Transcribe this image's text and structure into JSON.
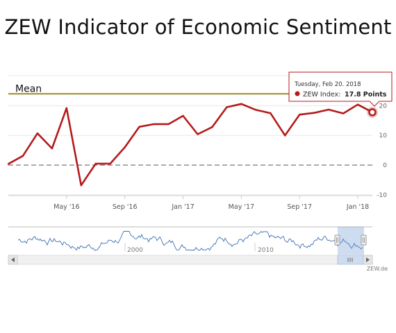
{
  "title": "ZEW Indicator of Economic Sentiment",
  "credits": "ZEW.de",
  "colors": {
    "series": "#b51a1a",
    "mean": "#9a8a2a",
    "zero": "#777777",
    "navigator": "#3a6fb5"
  },
  "chart_data": {
    "type": "line",
    "title": "ZEW Indicator of Economic Sentiment",
    "x": [
      "2016-01",
      "2016-02",
      "2016-03",
      "2016-04",
      "2016-05",
      "2016-06",
      "2016-07",
      "2016-08",
      "2016-09",
      "2016-10",
      "2016-11",
      "2016-12",
      "2017-01",
      "2017-02",
      "2017-03",
      "2017-04",
      "2017-05",
      "2017-06",
      "2017-07",
      "2017-08",
      "2017-09",
      "2017-10",
      "2017-11",
      "2017-12",
      "2018-01",
      "2018-02"
    ],
    "series": [
      {
        "name": "ZEW Index",
        "values": [
          0.4,
          3.1,
          10.7,
          5.6,
          19.2,
          -6.8,
          0.5,
          0.5,
          6.0,
          12.9,
          13.8,
          13.8,
          16.6,
          10.4,
          12.8,
          19.5,
          20.6,
          18.6,
          17.5,
          10.0,
          17.0,
          17.6,
          18.7,
          17.4,
          20.4,
          17.8
        ]
      }
    ],
    "mean_line": {
      "label": "Mean",
      "value": 24.0
    },
    "xticks": [
      {
        "label": "May '16",
        "x": "2016-05"
      },
      {
        "label": "Sep '16",
        "x": "2016-09"
      },
      {
        "label": "Jan '17",
        "x": "2017-01"
      },
      {
        "label": "May '17",
        "x": "2017-05"
      },
      {
        "label": "Sep '17",
        "x": "2017-09"
      },
      {
        "label": "Jan '18",
        "x": "2018-01"
      }
    ],
    "yticks": [
      "-10",
      "0",
      "10",
      "20"
    ],
    "ylim": [
      -10,
      25
    ],
    "grid": true,
    "tooltip": {
      "date": "Tuesday, Feb 20. 2018",
      "series": "ZEW Index:",
      "value": "17.8 Points"
    },
    "navigator": {
      "tick_labels": [
        "2000",
        "2010"
      ]
    }
  }
}
